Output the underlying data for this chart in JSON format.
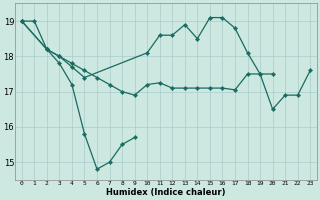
{
  "xlabel": "Humidex (Indice chaleur)",
  "bg_color": "#cce8e0",
  "grid_color": "#aacccc",
  "line_color": "#1a6b60",
  "xlim": [
    -0.5,
    23.5
  ],
  "ylim": [
    14.5,
    19.5
  ],
  "yticks": [
    15,
    16,
    17,
    18,
    19
  ],
  "xtick_labels": [
    "0",
    "1",
    "2",
    "3",
    "4",
    "5",
    "6",
    "7",
    "8",
    "9",
    "10",
    "11",
    "12",
    "13",
    "14",
    "15",
    "16",
    "17",
    "18",
    "19",
    "20",
    "21",
    "22",
    "23"
  ],
  "series": [
    {
      "x": [
        0,
        1,
        2,
        3,
        4,
        5,
        6,
        7,
        8,
        9
      ],
      "y": [
        19.0,
        19.0,
        18.2,
        17.8,
        17.2,
        15.8,
        14.8,
        15.0,
        15.5,
        15.7
      ]
    },
    {
      "x": [
        0,
        2,
        3,
        4,
        5,
        6,
        7,
        8,
        9,
        10,
        11,
        12,
        13,
        14,
        15,
        16,
        17,
        18,
        19,
        20,
        21,
        22,
        23
      ],
      "y": [
        19.0,
        18.2,
        18.0,
        17.8,
        17.6,
        17.4,
        17.2,
        17.0,
        16.9,
        17.2,
        17.25,
        17.1,
        17.1,
        17.1,
        17.1,
        17.1,
        17.05,
        17.5,
        17.5,
        16.5,
        16.9,
        16.9,
        17.6
      ]
    },
    {
      "x": [
        0,
        2,
        3,
        4,
        5,
        10,
        11,
        12,
        13,
        14,
        15,
        16,
        17,
        18,
        19,
        20
      ],
      "y": [
        19.0,
        18.2,
        18.0,
        17.7,
        17.4,
        18.1,
        18.6,
        18.6,
        18.9,
        18.5,
        19.1,
        19.1,
        18.8,
        18.1,
        17.5,
        17.5
      ]
    }
  ]
}
